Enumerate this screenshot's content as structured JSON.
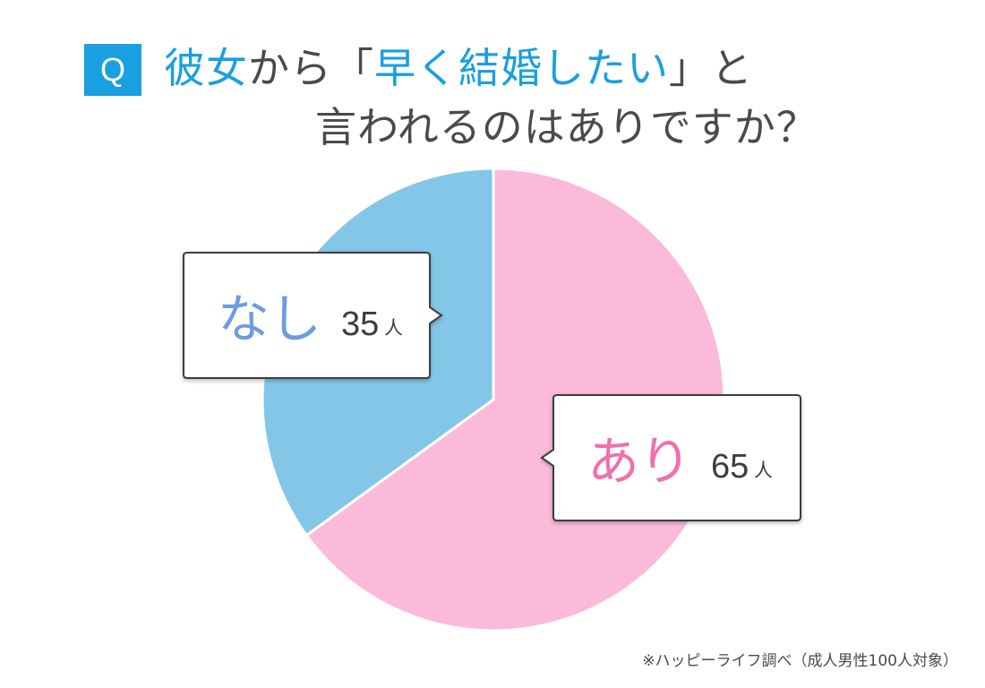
{
  "badge": "Q",
  "title": {
    "line1_part1": "彼女",
    "line1_part2": "から「",
    "line1_part3": "早く結婚したい",
    "line1_part4": "」と",
    "line2": "言われるのはありですか？"
  },
  "source_note": "※ハッピーライフ調べ（成人男性100人対象）",
  "colors": {
    "accent_blue": "#1a9fe0",
    "slice_nashi": "#84c6e8",
    "slice_ari": "#fbbad9",
    "label_nashi": "#6d9ce0",
    "label_ari": "#f06fae"
  },
  "chart_data": {
    "type": "pie",
    "title": "彼女から「早く結婚したい」と言われるのはありですか？",
    "unit": "人",
    "slices": [
      {
        "label": "あり",
        "value": 65,
        "value_text": "65"
      },
      {
        "label": "なし",
        "value": 35,
        "value_text": "35"
      }
    ]
  }
}
